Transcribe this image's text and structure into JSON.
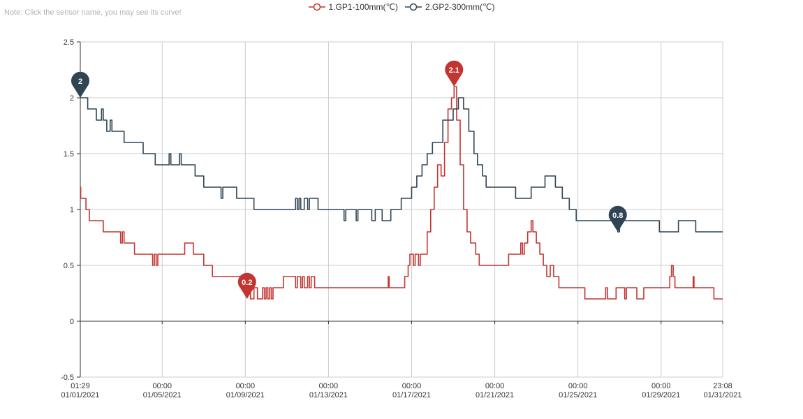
{
  "note": "Note: Click the sensor name, you may see its curve!",
  "chart_data": {
    "type": "line",
    "x_range": [
      "2021-01-01T01:29",
      "2021-01-31T23:08"
    ],
    "ylim": [
      -0.5,
      2.5
    ],
    "yticks": [
      2.5,
      2,
      1.5,
      1,
      0.5,
      0,
      -0.5
    ],
    "ytick_labels": [
      "2.5",
      "2",
      "1.5",
      "1",
      "0.5",
      "0",
      "-0.5"
    ],
    "xticks": [
      {
        "x": "2021-01-01T01:29",
        "time": "01:29",
        "date": "01/01/2021"
      },
      {
        "x": "2021-01-05T00:00",
        "time": "00:00",
        "date": "01/05/2021"
      },
      {
        "x": "2021-01-09T00:00",
        "time": "00:00",
        "date": "01/09/2021"
      },
      {
        "x": "2021-01-13T00:00",
        "time": "00:00",
        "date": "01/13/2021"
      },
      {
        "x": "2021-01-17T00:00",
        "time": "00:00",
        "date": "01/17/2021"
      },
      {
        "x": "2021-01-21T00:00",
        "time": "00:00",
        "date": "01/21/2021"
      },
      {
        "x": "2021-01-25T00:00",
        "time": "00:00",
        "date": "01/25/2021"
      },
      {
        "x": "2021-01-29T00:00",
        "time": "00:00",
        "date": "01/29/2021"
      },
      {
        "x": "2021-01-31T23:08",
        "time": "23:08",
        "date": "01/31/2021"
      }
    ],
    "grid": true,
    "legend_position": "top-center",
    "series": [
      {
        "name": "1.GP1-100mm(℃)",
        "color": "#c23531",
        "points": [
          [
            "2021-01-01T01:29",
            1.2
          ],
          [
            "2021-01-01T02:00",
            1.1
          ],
          [
            "2021-01-01T06:00",
            1.1
          ],
          [
            "2021-01-01T08:00",
            1.0
          ],
          [
            "2021-01-01T12:00",
            0.9
          ],
          [
            "2021-01-02T02:00",
            0.9
          ],
          [
            "2021-01-02T04:00",
            0.8
          ],
          [
            "2021-01-02T22:00",
            0.8
          ],
          [
            "2021-01-03T00:00",
            0.7
          ],
          [
            "2021-01-03T02:00",
            0.8
          ],
          [
            "2021-01-03T04:00",
            0.7
          ],
          [
            "2021-01-03T14:00",
            0.7
          ],
          [
            "2021-01-03T16:00",
            0.6
          ],
          [
            "2021-01-04T12:00",
            0.6
          ],
          [
            "2021-01-04T13:00",
            0.5
          ],
          [
            "2021-01-04T15:00",
            0.6
          ],
          [
            "2021-01-04T17:00",
            0.5
          ],
          [
            "2021-01-04T19:00",
            0.6
          ],
          [
            "2021-01-06T00:00",
            0.6
          ],
          [
            "2021-01-06T02:00",
            0.7
          ],
          [
            "2021-01-06T10:00",
            0.7
          ],
          [
            "2021-01-06T12:00",
            0.6
          ],
          [
            "2021-01-06T22:00",
            0.6
          ],
          [
            "2021-01-07T00:00",
            0.5
          ],
          [
            "2021-01-07T08:00",
            0.5
          ],
          [
            "2021-01-07T10:00",
            0.4
          ],
          [
            "2021-01-08T20:00",
            0.4
          ],
          [
            "2021-01-08T22:00",
            0.3
          ],
          [
            "2021-01-09T04:00",
            0.3
          ],
          [
            "2021-01-09T06:00",
            0.2
          ],
          [
            "2021-01-09T10:00",
            0.3
          ],
          [
            "2021-01-09T14:00",
            0.2
          ],
          [
            "2021-01-09T20:00",
            0.3
          ],
          [
            "2021-01-09T22:00",
            0.2
          ],
          [
            "2021-01-10T00:00",
            0.3
          ],
          [
            "2021-01-10T02:00",
            0.2
          ],
          [
            "2021-01-10T04:00",
            0.3
          ],
          [
            "2021-01-10T06:00",
            0.2
          ],
          [
            "2021-01-10T08:00",
            0.3
          ],
          [
            "2021-01-10T18:00",
            0.3
          ],
          [
            "2021-01-10T20:00",
            0.4
          ],
          [
            "2021-01-11T08:00",
            0.4
          ],
          [
            "2021-01-11T10:00",
            0.3
          ],
          [
            "2021-01-11T12:00",
            0.4
          ],
          [
            "2021-01-11T16:00",
            0.3
          ],
          [
            "2021-01-11T18:00",
            0.4
          ],
          [
            "2021-01-11T20:00",
            0.3
          ],
          [
            "2021-01-12T00:00",
            0.4
          ],
          [
            "2021-01-12T02:00",
            0.3
          ],
          [
            "2021-01-12T04:00",
            0.4
          ],
          [
            "2021-01-12T08:00",
            0.3
          ],
          [
            "2021-01-15T20:00",
            0.3
          ],
          [
            "2021-01-15T21:00",
            0.4
          ],
          [
            "2021-01-15T22:00",
            0.3
          ],
          [
            "2021-01-16T14:00",
            0.3
          ],
          [
            "2021-01-16T16:00",
            0.4
          ],
          [
            "2021-01-16T18:00",
            0.4
          ],
          [
            "2021-01-16T20:00",
            0.5
          ],
          [
            "2021-01-16T22:00",
            0.6
          ],
          [
            "2021-01-17T02:00",
            0.5
          ],
          [
            "2021-01-17T04:00",
            0.6
          ],
          [
            "2021-01-17T08:00",
            0.5
          ],
          [
            "2021-01-17T10:00",
            0.6
          ],
          [
            "2021-01-17T14:00",
            0.6
          ],
          [
            "2021-01-17T18:00",
            0.8
          ],
          [
            "2021-01-17T22:00",
            1.0
          ],
          [
            "2021-01-18T02:00",
            1.2
          ],
          [
            "2021-01-18T06:00",
            1.4
          ],
          [
            "2021-01-18T10:00",
            1.3
          ],
          [
            "2021-01-18T14:00",
            1.6
          ],
          [
            "2021-01-18T18:00",
            1.9
          ],
          [
            "2021-01-18T22:00",
            2.0
          ],
          [
            "2021-01-19T01:00",
            2.1
          ],
          [
            "2021-01-19T04:00",
            1.8
          ],
          [
            "2021-01-19T08:00",
            1.4
          ],
          [
            "2021-01-19T12:00",
            1.0
          ],
          [
            "2021-01-19T16:00",
            0.8
          ],
          [
            "2021-01-19T20:00",
            0.7
          ],
          [
            "2021-01-20T02:00",
            0.6
          ],
          [
            "2021-01-20T06:00",
            0.5
          ],
          [
            "2021-01-21T14:00",
            0.5
          ],
          [
            "2021-01-21T16:00",
            0.6
          ],
          [
            "2021-01-22T04:00",
            0.6
          ],
          [
            "2021-01-22T06:00",
            0.7
          ],
          [
            "2021-01-22T08:00",
            0.6
          ],
          [
            "2021-01-22T10:00",
            0.7
          ],
          [
            "2021-01-22T14:00",
            0.8
          ],
          [
            "2021-01-22T18:00",
            0.9
          ],
          [
            "2021-01-22T20:00",
            0.8
          ],
          [
            "2021-01-23T00:00",
            0.7
          ],
          [
            "2021-01-23T04:00",
            0.6
          ],
          [
            "2021-01-23T08:00",
            0.5
          ],
          [
            "2021-01-23T12:00",
            0.4
          ],
          [
            "2021-01-23T16:00",
            0.5
          ],
          [
            "2021-01-23T20:00",
            0.4
          ],
          [
            "2021-01-24T00:00",
            0.4
          ],
          [
            "2021-01-24T02:00",
            0.3
          ],
          [
            "2021-01-25T06:00",
            0.3
          ],
          [
            "2021-01-25T08:00",
            0.2
          ],
          [
            "2021-01-26T06:00",
            0.2
          ],
          [
            "2021-01-26T08:00",
            0.3
          ],
          [
            "2021-01-26T10:00",
            0.2
          ],
          [
            "2021-01-26T18:00",
            0.2
          ],
          [
            "2021-01-26T20:00",
            0.3
          ],
          [
            "2021-01-27T04:00",
            0.3
          ],
          [
            "2021-01-27T06:00",
            0.2
          ],
          [
            "2021-01-27T08:00",
            0.3
          ],
          [
            "2021-01-27T18:00",
            0.3
          ],
          [
            "2021-01-27T20:00",
            0.2
          ],
          [
            "2021-01-28T02:00",
            0.2
          ],
          [
            "2021-01-28T04:00",
            0.3
          ],
          [
            "2021-01-29T08:00",
            0.3
          ],
          [
            "2021-01-29T10:00",
            0.4
          ],
          [
            "2021-01-29T12:00",
            0.5
          ],
          [
            "2021-01-29T14:00",
            0.4
          ],
          [
            "2021-01-29T16:00",
            0.3
          ],
          [
            "2021-01-30T12:00",
            0.3
          ],
          [
            "2021-01-30T13:00",
            0.4
          ],
          [
            "2021-01-30T14:00",
            0.3
          ],
          [
            "2021-01-31T12:00",
            0.3
          ],
          [
            "2021-01-31T13:00",
            0.2
          ],
          [
            "2021-01-31T23:08",
            0.2
          ]
        ],
        "markers": [
          {
            "label": "2.1",
            "x": "2021-01-19T01:00",
            "y": 2.1
          },
          {
            "label": "0.2",
            "x": "2021-01-09T02:00",
            "y": 0.2
          }
        ]
      },
      {
        "name": "2.GP2-300mm(℃)",
        "color": "#2f4554",
        "points": [
          [
            "2021-01-01T01:29",
            2.0
          ],
          [
            "2021-01-01T08:00",
            2.0
          ],
          [
            "2021-01-01T10:00",
            1.9
          ],
          [
            "2021-01-01T18:00",
            1.9
          ],
          [
            "2021-01-01T20:00",
            1.8
          ],
          [
            "2021-01-02T02:00",
            1.9
          ],
          [
            "2021-01-02T04:00",
            1.8
          ],
          [
            "2021-01-02T08:00",
            1.7
          ],
          [
            "2021-01-02T12:00",
            1.8
          ],
          [
            "2021-01-02T14:00",
            1.7
          ],
          [
            "2021-01-03T04:00",
            1.6
          ],
          [
            "2021-01-04T00:00",
            1.6
          ],
          [
            "2021-01-04T02:00",
            1.5
          ],
          [
            "2021-01-04T14:00",
            1.5
          ],
          [
            "2021-01-04T16:00",
            1.4
          ],
          [
            "2021-01-05T00:00",
            1.4
          ],
          [
            "2021-01-05T08:00",
            1.5
          ],
          [
            "2021-01-05T10:00",
            1.4
          ],
          [
            "2021-01-05T18:00",
            1.4
          ],
          [
            "2021-01-05T20:00",
            1.5
          ],
          [
            "2021-01-05T22:00",
            1.4
          ],
          [
            "2021-01-06T12:00",
            1.4
          ],
          [
            "2021-01-06T14:00",
            1.3
          ],
          [
            "2021-01-06T22:00",
            1.3
          ],
          [
            "2021-01-07T00:00",
            1.2
          ],
          [
            "2021-01-07T18:00",
            1.2
          ],
          [
            "2021-01-07T20:00",
            1.1
          ],
          [
            "2021-01-07T22:00",
            1.2
          ],
          [
            "2021-01-08T12:00",
            1.2
          ],
          [
            "2021-01-08T14:00",
            1.1
          ],
          [
            "2021-01-09T08:00",
            1.1
          ],
          [
            "2021-01-09T10:00",
            1.0
          ],
          [
            "2021-01-11T08:00",
            1.0
          ],
          [
            "2021-01-11T10:00",
            1.1
          ],
          [
            "2021-01-11T12:00",
            1.0
          ],
          [
            "2021-01-11T14:00",
            1.1
          ],
          [
            "2021-01-11T16:00",
            1.0
          ],
          [
            "2021-01-11T20:00",
            1.1
          ],
          [
            "2021-01-12T00:00",
            1.0
          ],
          [
            "2021-01-12T02:00",
            1.1
          ],
          [
            "2021-01-12T10:00",
            1.1
          ],
          [
            "2021-01-12T12:00",
            1.0
          ],
          [
            "2021-01-13T16:00",
            1.0
          ],
          [
            "2021-01-13T18:00",
            0.9
          ],
          [
            "2021-01-13T20:00",
            1.0
          ],
          [
            "2021-01-14T06:00",
            1.0
          ],
          [
            "2021-01-14T08:00",
            0.9
          ],
          [
            "2021-01-14T10:00",
            1.0
          ],
          [
            "2021-01-15T00:00",
            1.0
          ],
          [
            "2021-01-15T02:00",
            0.9
          ],
          [
            "2021-01-15T06:00",
            1.0
          ],
          [
            "2021-01-15T12:00",
            1.0
          ],
          [
            "2021-01-15T14:00",
            0.9
          ],
          [
            "2021-01-15T22:00",
            0.9
          ],
          [
            "2021-01-16T00:00",
            1.0
          ],
          [
            "2021-01-16T10:00",
            1.0
          ],
          [
            "2021-01-16T12:00",
            1.1
          ],
          [
            "2021-01-16T22:00",
            1.1
          ],
          [
            "2021-01-17T00:00",
            1.2
          ],
          [
            "2021-01-17T06:00",
            1.3
          ],
          [
            "2021-01-17T12:00",
            1.4
          ],
          [
            "2021-01-17T18:00",
            1.5
          ],
          [
            "2021-01-18T00:00",
            1.6
          ],
          [
            "2021-01-18T08:00",
            1.6
          ],
          [
            "2021-01-18T12:00",
            1.8
          ],
          [
            "2021-01-19T00:00",
            1.9
          ],
          [
            "2021-01-19T06:00",
            2.0
          ],
          [
            "2021-01-19T12:00",
            1.9
          ],
          [
            "2021-01-19T18:00",
            1.7
          ],
          [
            "2021-01-20T00:00",
            1.5
          ],
          [
            "2021-01-20T04:00",
            1.4
          ],
          [
            "2021-01-20T10:00",
            1.3
          ],
          [
            "2021-01-20T14:00",
            1.2
          ],
          [
            "2021-01-21T22:00",
            1.2
          ],
          [
            "2021-01-22T00:00",
            1.1
          ],
          [
            "2021-01-22T16:00",
            1.1
          ],
          [
            "2021-01-22T18:00",
            1.2
          ],
          [
            "2021-01-23T08:00",
            1.2
          ],
          [
            "2021-01-23T10:00",
            1.3
          ],
          [
            "2021-01-23T20:00",
            1.3
          ],
          [
            "2021-01-23T22:00",
            1.2
          ],
          [
            "2021-01-24T04:00",
            1.2
          ],
          [
            "2021-01-24T06:00",
            1.1
          ],
          [
            "2021-01-24T14:00",
            1.0
          ],
          [
            "2021-01-24T20:00",
            1.0
          ],
          [
            "2021-01-24T22:00",
            0.9
          ],
          [
            "2021-01-26T20:00",
            0.9
          ],
          [
            "2021-01-26T22:00",
            0.8
          ],
          [
            "2021-01-27T00:00",
            0.9
          ],
          [
            "2021-01-28T20:00",
            0.9
          ],
          [
            "2021-01-28T22:00",
            0.8
          ],
          [
            "2021-01-29T18:00",
            0.8
          ],
          [
            "2021-01-29T20:00",
            0.9
          ],
          [
            "2021-01-30T14:00",
            0.9
          ],
          [
            "2021-01-30T16:00",
            0.8
          ],
          [
            "2021-01-31T23:08",
            0.8
          ]
        ],
        "markers": [
          {
            "label": "2",
            "x": "2021-01-01T01:29",
            "y": 2.0
          },
          {
            "label": "0.8",
            "x": "2021-01-26T22:00",
            "y": 0.8
          }
        ]
      }
    ]
  }
}
